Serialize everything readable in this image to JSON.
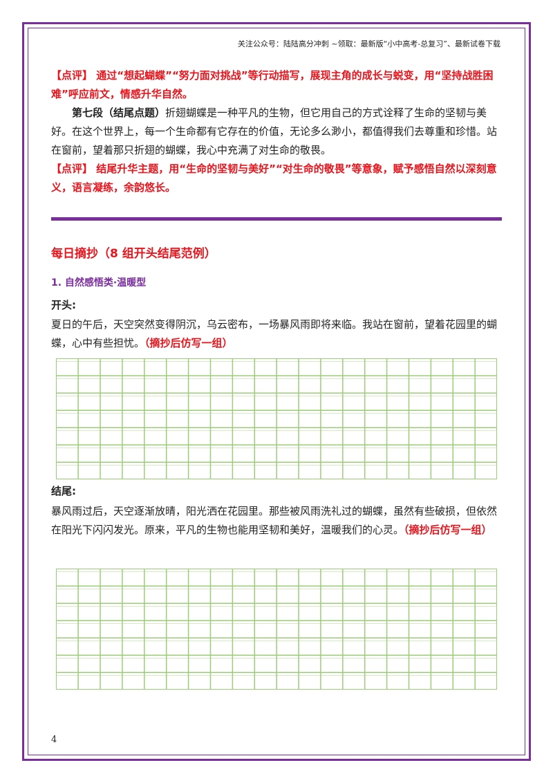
{
  "header": {
    "text": "关注公众号：陆陆高分冲刺 ~领取：最新版“小中高考-总复习”、最新试卷下载"
  },
  "top": {
    "review1": "【点评】 通过“想起蝴蝶”“努力面对挑战”等行动描写，展现主角的成长与蜕变，用“坚持战胜困难”呼应前文，情感升华自然。",
    "para_heading": "第七段（结尾点题）",
    "para_body": "折翅蝴蝶是一种平凡的生物，但它用自己的方式诠释了生命的坚韧与美好。在这个世界上，每一个生命都有它存在的价值，无论多么渺小，都值得我们去尊重和珍惜。站在窗前，望着那只折翅的蝴蝶，我心中充满了对生命的敬畏。",
    "review2": "【点评】 结尾升华主题，用“生命的坚韧与美好”“对生命的敬畏”等意象，赋予感悟自然以深刻意义，语言凝练，余韵悠长。"
  },
  "section": {
    "title": "每日摘抄（8 组开头结尾范例）",
    "subtitle": "1. 自然感悟类·温暖型",
    "opening_label": "开头:",
    "opening_text": "夏日的午后，天空突然变得阴沉，乌云密布，一场暴风雨即将来临。我站在窗前，望着花园里的蝴蝶，心中有些担忧。",
    "copy_hint": "（摘抄后仿写一组）",
    "ending_label": "结尾:",
    "ending_text": "暴风雨过后，天空逐渐放晴，阳光洒在花园里。那些被风雨洗礼过的蝴蝶，虽然有些破损，但依然在阳光下闪闪发光。原来，平凡的生物也能用坚韧和美好，温暖我们的心灵。"
  },
  "page_number": "4",
  "colors": {
    "border": "#7a2e9c",
    "accent_red": "#e8141c",
    "grid_green": "#9ccc78"
  }
}
